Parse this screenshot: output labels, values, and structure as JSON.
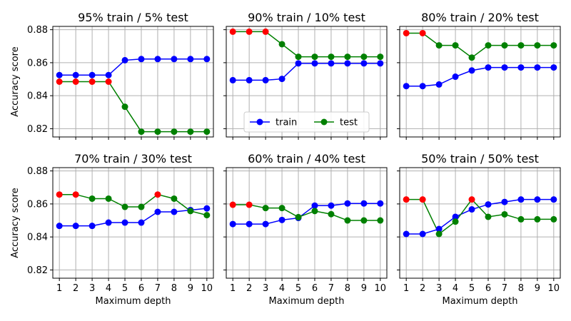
{
  "chart_data": {
    "type": "line",
    "x": [
      1,
      2,
      3,
      4,
      5,
      6,
      7,
      8,
      9,
      10
    ],
    "xlabel": "Maximum depth",
    "ylabel": "Accuracy score",
    "ylim": [
      0.815,
      0.882
    ],
    "yticks": [
      0.82,
      0.84,
      0.86,
      0.88
    ],
    "ytick_labels": [
      "0.82",
      "0.84",
      "0.86",
      "0.88"
    ],
    "xtick_labels": [
      "1",
      "2",
      "3",
      "4",
      "5",
      "6",
      "7",
      "8",
      "9",
      "10"
    ],
    "grid": true,
    "colors": {
      "train": "#0000ff",
      "test": "#008000",
      "highlight": "#ff0000"
    },
    "legend": {
      "panel": 1,
      "placement": "lower-center",
      "entries": [
        "train",
        "test"
      ]
    },
    "panels": [
      {
        "title": "95% train / 5% test",
        "train": [
          0.8525,
          0.8525,
          0.8525,
          0.8525,
          0.8615,
          0.8622,
          0.8622,
          0.8622,
          0.8622,
          0.8622
        ],
        "test": [
          0.8485,
          0.8485,
          0.8485,
          0.8485,
          0.8333,
          0.8182,
          0.8182,
          0.8182,
          0.8182,
          0.8182
        ],
        "best_test_depths": [
          1,
          2,
          3,
          4
        ]
      },
      {
        "title": "90% train / 10% test",
        "train": [
          0.8494,
          0.8494,
          0.8494,
          0.8502,
          0.8596,
          0.8596,
          0.8596,
          0.8596,
          0.8596,
          0.8596
        ],
        "test": [
          0.8788,
          0.8788,
          0.8788,
          0.8712,
          0.8636,
          0.8636,
          0.8636,
          0.8636,
          0.8636,
          0.8636
        ],
        "best_test_depths": [
          1,
          2,
          3
        ]
      },
      {
        "title": "80% train / 20% test",
        "train": [
          0.8458,
          0.8458,
          0.8468,
          0.8515,
          0.8553,
          0.8571,
          0.8571,
          0.8571,
          0.8571,
          0.8571
        ],
        "test": [
          0.8779,
          0.8779,
          0.8705,
          0.8705,
          0.8631,
          0.8705,
          0.8705,
          0.8705,
          0.8705,
          0.8705
        ],
        "best_test_depths": [
          1,
          2
        ]
      },
      {
        "title": "70% train / 30% test",
        "train": [
          0.8467,
          0.8467,
          0.8467,
          0.8487,
          0.8487,
          0.8487,
          0.8552,
          0.8552,
          0.8563,
          0.8573
        ],
        "test": [
          0.8657,
          0.8657,
          0.8632,
          0.8632,
          0.8582,
          0.8582,
          0.8657,
          0.8632,
          0.8557,
          0.8532
        ],
        "best_test_depths": [
          1,
          2,
          7
        ]
      },
      {
        "title": "60% train / 40% test",
        "train": [
          0.8478,
          0.8478,
          0.8478,
          0.8503,
          0.8515,
          0.859,
          0.859,
          0.8603,
          0.8603,
          0.8603
        ],
        "test": [
          0.8595,
          0.8595,
          0.8575,
          0.8575,
          0.852,
          0.8557,
          0.8538,
          0.85,
          0.85,
          0.85
        ],
        "best_test_depths": [
          1,
          2
        ]
      },
      {
        "title": "50% train / 50% test",
        "train": [
          0.8418,
          0.8418,
          0.8448,
          0.8522,
          0.8567,
          0.8597,
          0.8612,
          0.8627,
          0.8627,
          0.8627
        ],
        "test": [
          0.8627,
          0.8627,
          0.8418,
          0.8493,
          0.8627,
          0.8522,
          0.8537,
          0.8507,
          0.8507,
          0.8507
        ],
        "best_test_depths": [
          1,
          2,
          5
        ]
      }
    ]
  }
}
